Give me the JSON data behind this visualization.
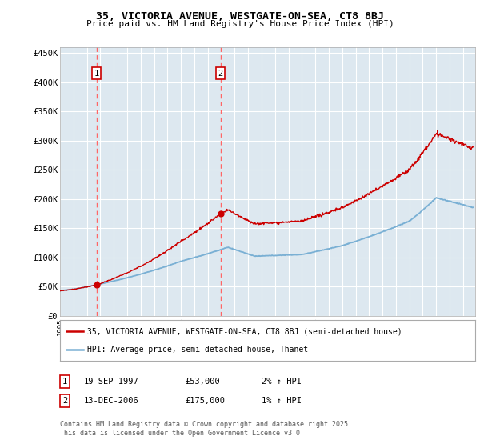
{
  "title_line1": "35, VICTORIA AVENUE, WESTGATE-ON-SEA, CT8 8BJ",
  "title_line2": "Price paid vs. HM Land Registry's House Price Index (HPI)",
  "ylim": [
    0,
    460000
  ],
  "yticks": [
    0,
    50000,
    100000,
    150000,
    200000,
    250000,
    300000,
    350000,
    400000,
    450000
  ],
  "ytick_labels": [
    "£0",
    "£50K",
    "£100K",
    "£150K",
    "£200K",
    "£250K",
    "£300K",
    "£350K",
    "£400K",
    "£450K"
  ],
  "sale1_x": 1997.72,
  "sale1_price": 53000,
  "sale2_x": 2006.95,
  "sale2_price": 175000,
  "line_color": "#cc0000",
  "hpi_color": "#7ab0d4",
  "vline_color": "#ff6666",
  "chart_bg": "#dde8f0",
  "background_color": "#ffffff",
  "grid_color": "#ffffff",
  "legend_line1": "35, VICTORIA AVENUE, WESTGATE-ON-SEA, CT8 8BJ (semi-detached house)",
  "legend_line2": "HPI: Average price, semi-detached house, Thanet",
  "table_row1": [
    "1",
    "19-SEP-1997",
    "£53,000",
    "2% ↑ HPI"
  ],
  "table_row2": [
    "2",
    "13-DEC-2006",
    "£175,000",
    "1% ↑ HPI"
  ],
  "footnote": "Contains HM Land Registry data © Crown copyright and database right 2025.\nThis data is licensed under the Open Government Licence v3.0.",
  "xstart": 1995.0,
  "xend": 2025.9
}
